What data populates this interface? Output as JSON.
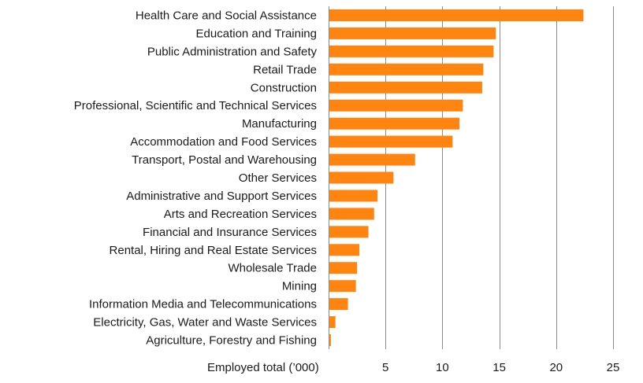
{
  "chart_data": {
    "type": "bar",
    "orientation": "horizontal",
    "categories": [
      "Health Care and Social Assistance",
      "Education and Training",
      "Public Administration and Safety",
      "Retail Trade",
      "Construction",
      "Professional, Scientific and Technical Services",
      "Manufacturing",
      "Accommodation and Food Services",
      "Transport, Postal and Warehousing",
      "Other Services",
      "Administrative and Support Services",
      "Arts and Recreation Services",
      "Financial and Insurance Services",
      "Rental, Hiring and Real Estate Services",
      "Wholesale Trade",
      "Mining",
      "Information Media and Telecommunications",
      "Electricity, Gas, Water and Waste Services",
      "Agriculture, Forestry and Fishing"
    ],
    "values": [
      22.4,
      14.7,
      14.5,
      13.6,
      13.5,
      11.8,
      11.5,
      10.9,
      7.6,
      5.7,
      4.3,
      4.0,
      3.5,
      2.7,
      2.5,
      2.4,
      1.7,
      0.6,
      0.2
    ],
    "xlabel": "Employed total (’000)",
    "xticks": [
      5,
      10,
      15,
      20,
      25
    ],
    "xlim": [
      0,
      25
    ],
    "grid": "vertical",
    "bar_color": "#FF8410",
    "grid_color": "#8c8c8c"
  }
}
